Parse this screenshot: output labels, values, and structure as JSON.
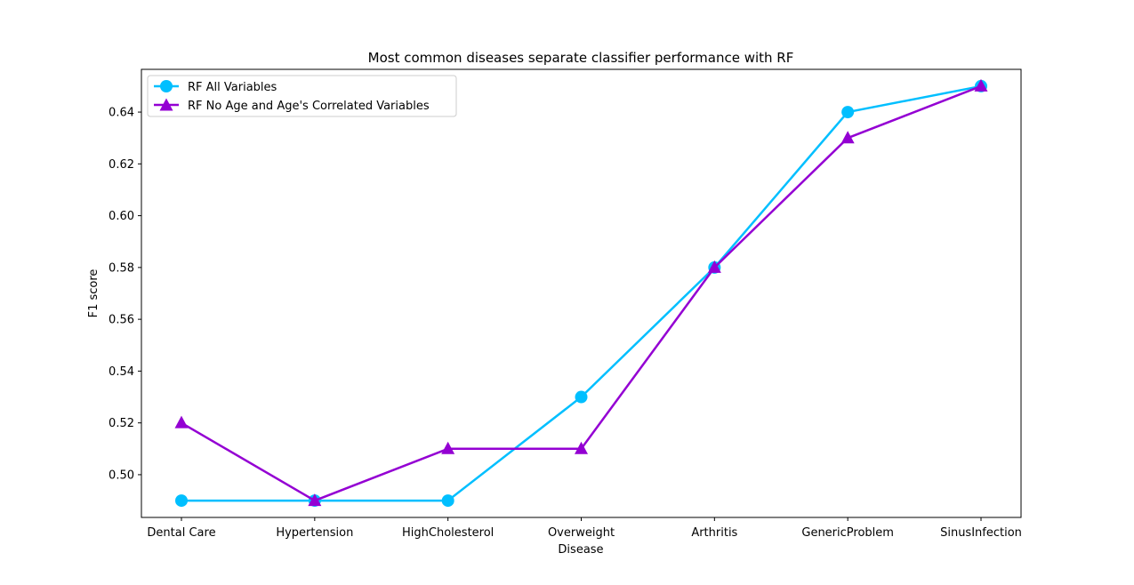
{
  "chart_data": {
    "type": "line",
    "title": "Most common diseases separate classifier performance with RF",
    "xlabel": "Disease",
    "ylabel": "F1 score",
    "categories": [
      "Dental Care",
      "Hypertension",
      "HighCholesterol",
      "Overweight",
      "Arthritis",
      "GenericProblem",
      "SinusInfection"
    ],
    "ylim": [
      0.4835,
      0.6565
    ],
    "yticks": [
      0.5,
      0.52,
      0.54,
      0.56,
      0.58,
      0.6,
      0.62,
      0.64
    ],
    "ytick_labels": [
      "0.50",
      "0.52",
      "0.54",
      "0.56",
      "0.58",
      "0.60",
      "0.62",
      "0.64"
    ],
    "grid": false,
    "legend_position": "top-left",
    "series": [
      {
        "name": "RF All Variables",
        "marker": "circle",
        "color": "#00bfff",
        "values": [
          0.49,
          0.49,
          0.49,
          0.53,
          0.58,
          0.64,
          0.65
        ]
      },
      {
        "name": "RF No Age and Age's Correlated Variables",
        "marker": "triangle",
        "color": "#9400d3",
        "values": [
          0.52,
          0.49,
          0.51,
          0.51,
          0.58,
          0.63,
          0.65
        ]
      }
    ]
  }
}
